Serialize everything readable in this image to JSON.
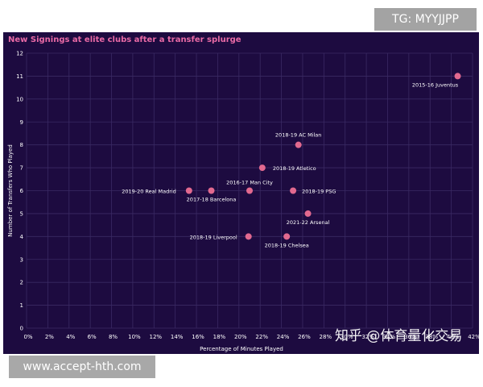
{
  "badges": {
    "tg": "TG: MYYJJPP",
    "url": "www.accept-hth.com",
    "zhihu": "知乎 @体育量化交易"
  },
  "colors": {
    "background": "#1d0b40",
    "title": "#e96aa6",
    "point": "#e2698f",
    "grid": "#3a2a63",
    "text": "#ffffff"
  },
  "chart_data": {
    "type": "scatter",
    "title": "New Signings at elite clubs after a transfer splurge",
    "xlabel": "Percentage of Minutes Played",
    "ylabel": "Number of Transfers Who Played",
    "xlim": [
      0,
      42
    ],
    "ylim": [
      0,
      12
    ],
    "x_ticks": [
      "0%",
      "2%",
      "4%",
      "6%",
      "8%",
      "10%",
      "12%",
      "14%",
      "16%",
      "18%",
      "20%",
      "22%",
      "24%",
      "26%",
      "28%",
      "30%",
      "32%",
      "34%",
      "36%",
      "38%",
      "40%",
      "42%"
    ],
    "y_ticks": [
      "0",
      "1",
      "2",
      "3",
      "4",
      "5",
      "6",
      "7",
      "8",
      "9",
      "10",
      "11",
      "12"
    ],
    "grid": true,
    "points": [
      {
        "label": "2015-16 Juventus",
        "x": 40.6,
        "y": 11
      },
      {
        "label": "2018-19 AC Milan",
        "x": 25.6,
        "y": 8
      },
      {
        "label": "2018-19 Atletico",
        "x": 22.2,
        "y": 7
      },
      {
        "label": "2019-20 Real Madrid",
        "x": 15.3,
        "y": 6
      },
      {
        "label": "2017-18 Barcelona",
        "x": 17.4,
        "y": 6
      },
      {
        "label": "2016-17 Man City",
        "x": 21.0,
        "y": 6
      },
      {
        "label": "2018-19 PSG",
        "x": 25.1,
        "y": 6
      },
      {
        "label": "2021-22 Arsenal",
        "x": 26.5,
        "y": 5
      },
      {
        "label": "2018-19 Liverpool",
        "x": 20.9,
        "y": 4
      },
      {
        "label": "2018-19 Chelsea",
        "x": 24.5,
        "y": 4
      }
    ]
  }
}
